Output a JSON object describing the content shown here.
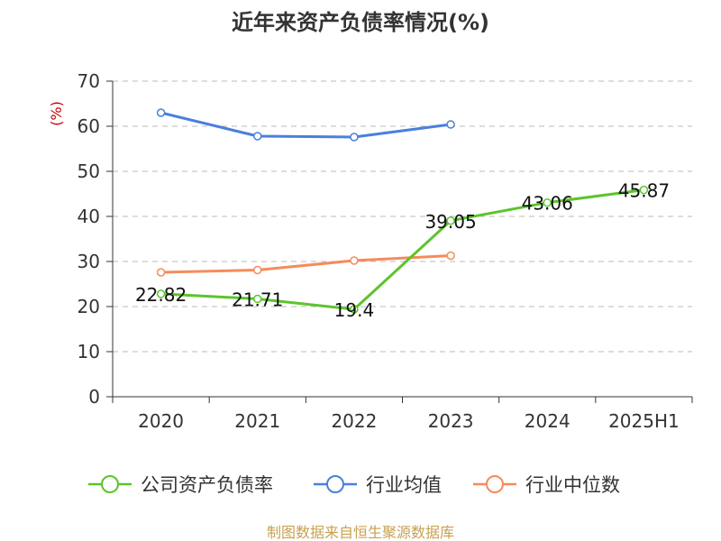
{
  "chart_data": {
    "type": "line",
    "title": "近年来资产负债率情况(%)",
    "unit_label": "(%)",
    "categories": [
      "2020",
      "2021",
      "2022",
      "2023",
      "2024",
      "2025H1"
    ],
    "ylim": [
      0,
      70
    ],
    "yticks": [
      "0",
      "10",
      "20",
      "30",
      "40",
      "50",
      "60",
      "70"
    ],
    "grid": true,
    "legend_position": "bottom",
    "series": [
      {
        "name": "公司资产负债率",
        "color": "#5cc42c",
        "values": [
          22.82,
          21.71,
          19.4,
          39.05,
          43.06,
          45.87
        ],
        "labels": [
          "22.82",
          "21.71",
          "19.4",
          "39.05",
          "43.06",
          "45.87"
        ]
      },
      {
        "name": "行业均值",
        "color": "#4a7fdc",
        "values": [
          63.0,
          57.8,
          57.6,
          60.4,
          null,
          null
        ]
      },
      {
        "name": "行业中位数",
        "color": "#f48c5c",
        "values": [
          27.6,
          28.1,
          30.2,
          31.3,
          null,
          null
        ]
      }
    ],
    "source": "制图数据来自恒生聚源数据库"
  }
}
